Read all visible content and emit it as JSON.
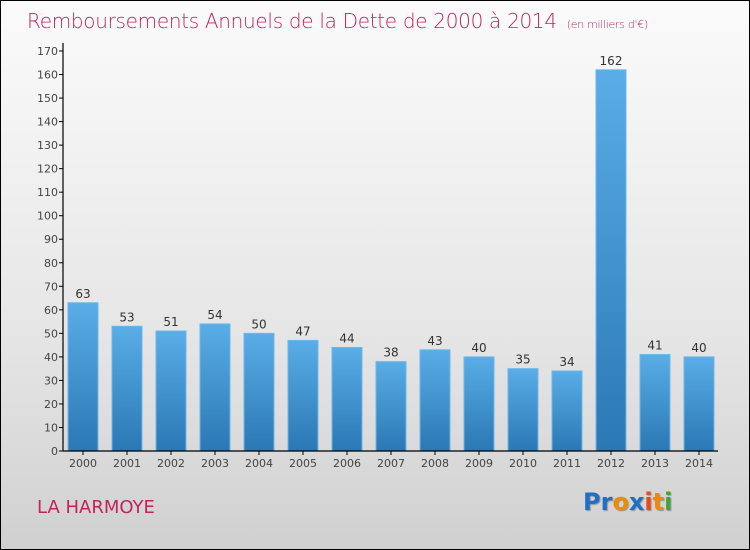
{
  "header": {
    "title": "Remboursements Annuels de la Dette de 2000 à 2014",
    "unit": "(en milliers d'€)"
  },
  "footer": {
    "city": "LA HARMOYE",
    "logo_letters": [
      {
        "char": "P",
        "color": "#1f6fc5"
      },
      {
        "char": "r",
        "color": "#1f6fc5"
      },
      {
        "char": "o",
        "color": "#f08a00"
      },
      {
        "char": "x",
        "color": "#1f6fc5"
      },
      {
        "char": "i",
        "color": "#e8481c"
      },
      {
        "char": "t",
        "color": "#f08a00"
      },
      {
        "char": "i",
        "color": "#3aa935"
      }
    ]
  },
  "chart_data": {
    "type": "bar",
    "title": "Remboursements Annuels de la Dette de 2000 à 2014",
    "subtitle": "(en milliers d'€)",
    "xlabel": "",
    "ylabel": "",
    "categories": [
      "2000",
      "2001",
      "2002",
      "2003",
      "2004",
      "2005",
      "2006",
      "2007",
      "2008",
      "2009",
      "2010",
      "2011",
      "2012",
      "2013",
      "2014"
    ],
    "values": [
      63,
      53,
      51,
      54,
      50,
      47,
      44,
      38,
      43,
      40,
      35,
      34,
      162,
      41,
      40
    ],
    "ylim": [
      0,
      170
    ],
    "yticks": [
      0,
      10,
      20,
      30,
      40,
      50,
      60,
      70,
      80,
      90,
      100,
      110,
      120,
      130,
      140,
      150,
      160,
      170
    ],
    "grid": false,
    "bar_color_top": "#5aade6",
    "bar_color_bottom": "#2a78b5",
    "data_labels": true
  }
}
